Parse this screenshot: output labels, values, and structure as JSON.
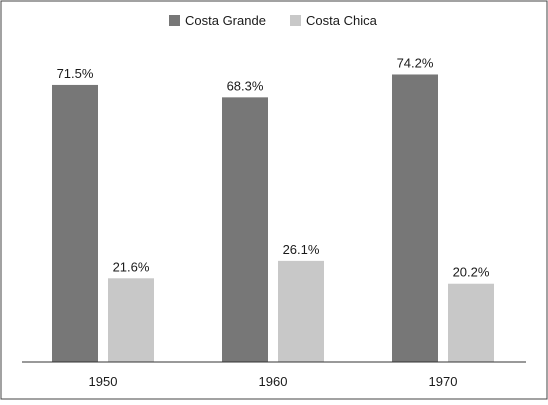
{
  "chart_data": {
    "type": "bar",
    "categories": [
      "1950",
      "1960",
      "1970"
    ],
    "series": [
      {
        "name": "Costa Grande",
        "values": [
          71.5,
          68.3,
          74.2
        ],
        "labels": [
          "71.5%",
          "68.3%",
          "74.2%"
        ],
        "color": "#777777"
      },
      {
        "name": "Costa Chica",
        "values": [
          21.6,
          26.1,
          20.2
        ],
        "labels": [
          "21.6%",
          "26.1%",
          "20.2%"
        ],
        "color": "#c8c8c8"
      }
    ],
    "ylim": [
      0,
      80
    ],
    "grid": false,
    "legend": "top-center",
    "frame_color": "#444444",
    "axis_color": "#333333"
  }
}
